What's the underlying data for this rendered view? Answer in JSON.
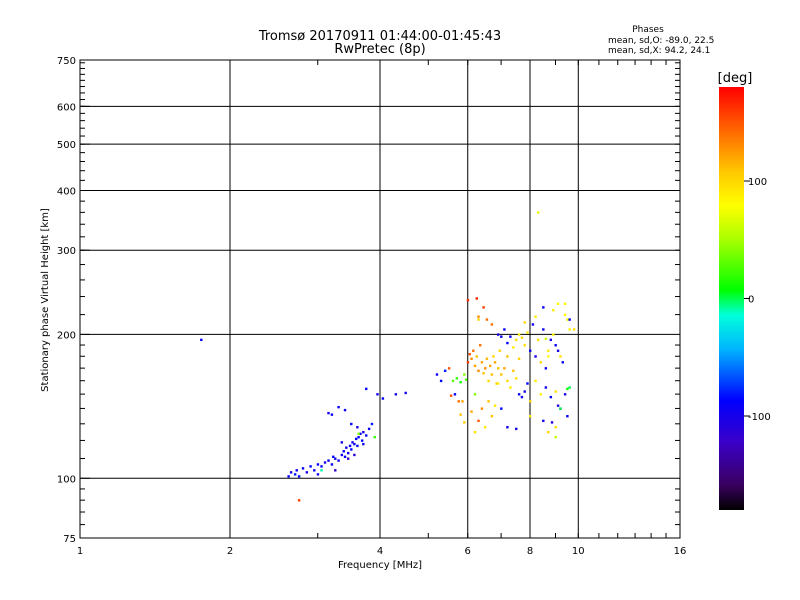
{
  "chart_data": {
    "type": "scatter",
    "title": "Tromsø 20170911 01:44:00-01:45:43",
    "subtitle": "RwPretec (8p)",
    "xlabel": "Frequency [MHz]",
    "ylabel": "Stationary phase Virtual Height [km]",
    "xscale": "log2",
    "yscale": "log",
    "xlim": [
      1,
      16
    ],
    "ylim": [
      75,
      750
    ],
    "xticks": [
      1,
      2,
      4,
      6,
      8,
      10,
      16
    ],
    "xtick_labels": [
      "1",
      "2",
      "4",
      "6",
      "8",
      "10",
      "16"
    ],
    "yticks": [
      75,
      100,
      200,
      300,
      400,
      500,
      600,
      750
    ],
    "ytick_labels": [
      "75",
      "100",
      "200",
      "300",
      "400",
      "500",
      "600",
      "750"
    ],
    "grid": true,
    "phases": {
      "title": "Phases",
      "line_o": "mean, sd,O: -89.0, 22.5",
      "line_x": "mean, sd,X:  94.2, 24.1"
    },
    "colorbar": {
      "label": "[deg]",
      "range": [
        -180,
        180
      ],
      "ticks": [
        100,
        0,
        -100
      ],
      "tick_labels": [
        "100",
        "0",
        "-100"
      ]
    },
    "series": [
      {
        "name": "points",
        "points": [
          [
            1.75,
            195,
            -90
          ],
          [
            2.62,
            101,
            -90
          ],
          [
            2.65,
            103,
            -100
          ],
          [
            2.7,
            102,
            -80
          ],
          [
            2.72,
            104,
            -95
          ],
          [
            2.75,
            101,
            -85
          ],
          [
            2.8,
            105,
            -90
          ],
          [
            2.85,
            103,
            -100
          ],
          [
            2.9,
            106,
            -85
          ],
          [
            2.95,
            104,
            -95
          ],
          [
            3.0,
            107,
            -90
          ],
          [
            3.05,
            106,
            -85
          ],
          [
            3.1,
            108,
            -100
          ],
          [
            3.15,
            109,
            -95
          ],
          [
            3.2,
            107,
            -90
          ],
          [
            3.22,
            111,
            -85
          ],
          [
            3.25,
            110,
            -100
          ],
          [
            3.3,
            109,
            -90
          ],
          [
            3.35,
            112,
            -95
          ],
          [
            3.38,
            114,
            -85
          ],
          [
            3.4,
            111,
            -90
          ],
          [
            3.42,
            116,
            -100
          ],
          [
            3.45,
            113,
            -95
          ],
          [
            3.48,
            117,
            -90
          ],
          [
            3.5,
            115,
            -85
          ],
          [
            3.52,
            119,
            -100
          ],
          [
            3.55,
            118,
            -95
          ],
          [
            3.58,
            121,
            -90
          ],
          [
            3.6,
            117,
            -85
          ],
          [
            3.62,
            122,
            -95
          ],
          [
            3.65,
            124,
            -90
          ],
          [
            3.68,
            120,
            -85
          ],
          [
            3.7,
            125,
            -100
          ],
          [
            3.75,
            123,
            -90
          ],
          [
            3.8,
            127,
            -95
          ],
          [
            3.35,
            119,
            -100
          ],
          [
            3.45,
            110,
            -120
          ],
          [
            3.55,
            112,
            -110
          ],
          [
            3.25,
            104,
            -120
          ],
          [
            3.0,
            102,
            -95
          ],
          [
            3.15,
            137,
            -95
          ],
          [
            3.2,
            136,
            -90
          ],
          [
            3.3,
            141,
            -90
          ],
          [
            3.4,
            139,
            -95
          ],
          [
            3.5,
            130,
            -85
          ],
          [
            3.6,
            128,
            -100
          ],
          [
            3.7,
            118,
            -95
          ],
          [
            3.9,
            122,
            20
          ],
          [
            3.62,
            124,
            40
          ],
          [
            3.75,
            154,
            -90
          ],
          [
            3.95,
            150,
            -95
          ],
          [
            4.05,
            147,
            -90
          ],
          [
            4.3,
            150,
            -100
          ],
          [
            4.5,
            151,
            -95
          ],
          [
            3.85,
            130,
            -80
          ],
          [
            2.75,
            90,
            160
          ],
          [
            3.05,
            104,
            -10
          ],
          [
            5.2,
            165,
            -95
          ],
          [
            5.3,
            160,
            -85
          ],
          [
            5.4,
            168,
            -80
          ],
          [
            5.5,
            170,
            150
          ],
          [
            5.6,
            160,
            30
          ],
          [
            5.7,
            162,
            20
          ],
          [
            5.8,
            159,
            10
          ],
          [
            5.9,
            165,
            40
          ],
          [
            5.95,
            161,
            25
          ],
          [
            5.65,
            150,
            -90
          ],
          [
            5.55,
            149,
            150
          ],
          [
            5.75,
            145,
            140
          ],
          [
            5.85,
            145,
            120
          ],
          [
            6.0,
            175,
            160
          ],
          [
            6.05,
            182,
            150
          ],
          [
            6.1,
            178,
            130
          ],
          [
            6.15,
            185,
            140
          ],
          [
            6.2,
            172,
            120
          ],
          [
            6.25,
            180,
            110
          ],
          [
            6.3,
            168,
            130
          ],
          [
            6.35,
            190,
            140
          ],
          [
            6.4,
            175,
            120
          ],
          [
            6.45,
            166,
            110
          ],
          [
            6.5,
            170,
            130
          ],
          [
            6.55,
            178,
            115
          ],
          [
            6.6,
            160,
            100
          ],
          [
            6.65,
            172,
            120
          ],
          [
            6.7,
            165,
            110
          ],
          [
            6.75,
            180,
            100
          ],
          [
            6.8,
            175,
            120
          ],
          [
            6.85,
            158,
            105
          ],
          [
            6.9,
            170,
            110
          ],
          [
            6.95,
            185,
            100
          ],
          [
            6.0,
            236,
            165
          ],
          [
            6.25,
            238,
            170
          ],
          [
            6.45,
            228,
            160
          ],
          [
            6.55,
            215,
            140
          ],
          [
            6.3,
            218,
            130
          ],
          [
            6.7,
            210,
            140
          ],
          [
            6.9,
            200,
            -100
          ],
          [
            7.0,
            198,
            -90
          ],
          [
            7.1,
            205,
            -95
          ],
          [
            7.2,
            192,
            -85
          ],
          [
            7.3,
            198,
            -95
          ],
          [
            7.4,
            188,
            90
          ],
          [
            7.5,
            195,
            95
          ],
          [
            7.6,
            200,
            85
          ],
          [
            7.7,
            197,
            100
          ],
          [
            7.8,
            190,
            95
          ],
          [
            7.9,
            202,
            90
          ],
          [
            8.0,
            185,
            -90
          ],
          [
            8.1,
            210,
            -95
          ],
          [
            8.2,
            180,
            -100
          ],
          [
            8.3,
            195,
            95
          ],
          [
            8.4,
            175,
            100
          ],
          [
            8.5,
            205,
            -90
          ],
          [
            8.6,
            170,
            -95
          ],
          [
            8.7,
            185,
            90
          ],
          [
            8.8,
            195,
            -100
          ],
          [
            8.9,
            200,
            85
          ],
          [
            9.0,
            190,
            -95
          ],
          [
            9.1,
            185,
            -100
          ],
          [
            9.2,
            180,
            95
          ],
          [
            9.3,
            175,
            -90
          ],
          [
            9.4,
            220,
            80
          ],
          [
            9.5,
            215,
            75
          ],
          [
            9.6,
            205,
            85
          ],
          [
            7.0,
            165,
            110
          ],
          [
            7.1,
            170,
            120
          ],
          [
            7.2,
            160,
            100
          ],
          [
            7.3,
            155,
            90
          ],
          [
            7.4,
            168,
            110
          ],
          [
            7.5,
            162,
            95
          ],
          [
            7.6,
            150,
            -90
          ],
          [
            7.7,
            148,
            -95
          ],
          [
            7.8,
            152,
            -100
          ],
          [
            7.9,
            158,
            -85
          ],
          [
            8.0,
            145,
            100
          ],
          [
            8.2,
            160,
            90
          ],
          [
            8.4,
            150,
            85
          ],
          [
            8.6,
            155,
            -95
          ],
          [
            8.8,
            148,
            -90
          ],
          [
            9.0,
            152,
            95
          ],
          [
            9.2,
            140,
            -95
          ],
          [
            9.4,
            150,
            -100
          ],
          [
            9.6,
            155,
            0
          ],
          [
            9.5,
            154,
            10
          ],
          [
            6.2,
            150,
            40
          ],
          [
            6.4,
            140,
            130
          ],
          [
            6.6,
            145,
            110
          ],
          [
            6.8,
            142,
            90
          ],
          [
            7.0,
            140,
            -85
          ],
          [
            6.1,
            138,
            120
          ],
          [
            6.3,
            132,
            150
          ],
          [
            6.5,
            128,
            90
          ],
          [
            6.7,
            135,
            110
          ],
          [
            5.8,
            136,
            110
          ],
          [
            5.9,
            131,
            105
          ],
          [
            6.2,
            125,
            95
          ],
          [
            7.2,
            128,
            -95
          ],
          [
            7.5,
            127,
            -100
          ],
          [
            8.0,
            135,
            90
          ],
          [
            8.5,
            132,
            -95
          ],
          [
            8.7,
            125,
            100
          ],
          [
            9.0,
            128,
            95
          ],
          [
            9.5,
            135,
            -90
          ],
          [
            8.3,
            360,
            70
          ],
          [
            6.3,
            215,
            100
          ],
          [
            9.6,
            215,
            -90
          ],
          [
            9.8,
            205,
            95
          ],
          [
            9.1,
            232,
            80
          ],
          [
            8.5,
            228,
            -90
          ],
          [
            8.9,
            225,
            90
          ],
          [
            9.4,
            232,
            85
          ],
          [
            7.8,
            212,
            100
          ],
          [
            8.2,
            218,
            90
          ],
          [
            8.6,
            196,
            60
          ],
          [
            8.7,
            180,
            80
          ],
          [
            9.2,
            140,
            0
          ],
          [
            9.1,
            142,
            -110
          ],
          [
            8.85,
            131,
            -110
          ],
          [
            9.0,
            122,
            60
          ],
          [
            7.6,
            178,
            100
          ],
          [
            7.2,
            180,
            110
          ],
          [
            6.9,
            158,
            90
          ]
        ]
      }
    ]
  }
}
